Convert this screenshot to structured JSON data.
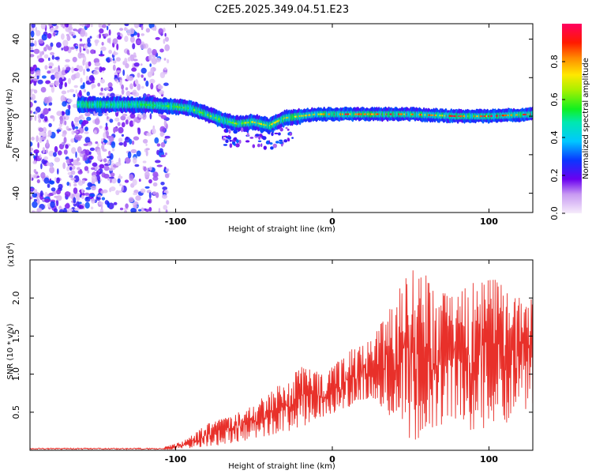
{
  "title": "C2E5.2025.349.04.51.E23",
  "colors": {
    "axis": "#000000",
    "snr_line": "#e8302a",
    "background": "#ffffff"
  },
  "chart_data": [
    {
      "type": "heatmap",
      "title": "C2E5.2025.349.04.51.E23",
      "xlabel": "Height of straight line (km)",
      "ylabel": "Frequency (Hz)",
      "xlim": [
        -193,
        128
      ],
      "ylim": [
        -50,
        48
      ],
      "xticks": [
        {
          "value": -100,
          "label": "-100"
        },
        {
          "value": 0,
          "label": "0"
        },
        {
          "value": 100,
          "label": "100"
        }
      ],
      "yticks": [
        {
          "value": -40,
          "label": "-40"
        },
        {
          "value": -20,
          "label": "-20"
        },
        {
          "value": 0,
          "label": "0"
        },
        {
          "value": 20,
          "label": "20"
        },
        {
          "value": 40,
          "label": "40"
        }
      ],
      "colorbar": {
        "label": "Normalized spectral amplitude",
        "range": [
          0,
          1
        ],
        "ticks": [
          {
            "value": 0.0,
            "label": "0.0"
          },
          {
            "value": 0.2,
            "label": "0.2"
          },
          {
            "value": 0.4,
            "label": "0.4"
          },
          {
            "value": 0.6,
            "label": "0.6"
          },
          {
            "value": 0.8,
            "label": "0.8"
          }
        ]
      },
      "ridge_center_hz": [
        [
          -160,
          6
        ],
        [
          -140,
          6
        ],
        [
          -120,
          6
        ],
        [
          -100,
          5
        ],
        [
          -90,
          4
        ],
        [
          -80,
          1
        ],
        [
          -70,
          -2
        ],
        [
          -60,
          -4
        ],
        [
          -50,
          -3
        ],
        [
          -40,
          -5
        ],
        [
          -30,
          -1
        ],
        [
          -20,
          0
        ],
        [
          -10,
          1
        ],
        [
          0,
          1
        ],
        [
          20,
          1
        ],
        [
          50,
          1
        ],
        [
          80,
          0
        ],
        [
          100,
          0
        ],
        [
          128,
          1
        ]
      ],
      "noise_region_km": [
        -193,
        -105
      ]
    },
    {
      "type": "line",
      "xlabel": "Height of straight line (km)",
      "ylabel": "SNR (10 * v/v)",
      "y_multiplier_label": "(x10",
      "y_multiplier_exp": "4",
      "y_multiplier_close": ")",
      "xlim": [
        -193,
        128
      ],
      "ylim": [
        0,
        2.5
      ],
      "xticks": [
        {
          "value": -100,
          "label": "-100"
        },
        {
          "value": 0,
          "label": "0"
        },
        {
          "value": 100,
          "label": "100"
        }
      ],
      "yticks": [
        {
          "value": 0.5,
          "label": "0.5"
        },
        {
          "value": 1.0,
          "label": "1.0"
        },
        {
          "value": 1.5,
          "label": "1.5"
        },
        {
          "value": 2.0,
          "label": "2.0"
        }
      ],
      "envelope": [
        {
          "x": -193,
          "lo": 0.0,
          "hi": 0.03
        },
        {
          "x": -110,
          "lo": 0.0,
          "hi": 0.03
        },
        {
          "x": -95,
          "lo": 0.02,
          "hi": 0.12
        },
        {
          "x": -80,
          "lo": 0.05,
          "hi": 0.35
        },
        {
          "x": -65,
          "lo": 0.08,
          "hi": 0.45
        },
        {
          "x": -50,
          "lo": 0.15,
          "hi": 0.6
        },
        {
          "x": -35,
          "lo": 0.2,
          "hi": 0.85
        },
        {
          "x": -20,
          "lo": 0.3,
          "hi": 1.1
        },
        {
          "x": -5,
          "lo": 0.45,
          "hi": 1.0
        },
        {
          "x": 10,
          "lo": 0.55,
          "hi": 1.3
        },
        {
          "x": 25,
          "lo": 0.7,
          "hi": 1.45
        },
        {
          "x": 35,
          "lo": 0.5,
          "hi": 1.8
        },
        {
          "x": 50,
          "lo": 0.1,
          "hi": 2.4
        },
        {
          "x": 60,
          "lo": 0.2,
          "hi": 2.3
        },
        {
          "x": 75,
          "lo": 0.4,
          "hi": 2.0
        },
        {
          "x": 90,
          "lo": 0.2,
          "hi": 2.2
        },
        {
          "x": 105,
          "lo": 0.3,
          "hi": 2.25
        },
        {
          "x": 115,
          "lo": 0.4,
          "hi": 2.0
        },
        {
          "x": 128,
          "lo": 0.6,
          "hi": 2.1
        }
      ]
    }
  ]
}
